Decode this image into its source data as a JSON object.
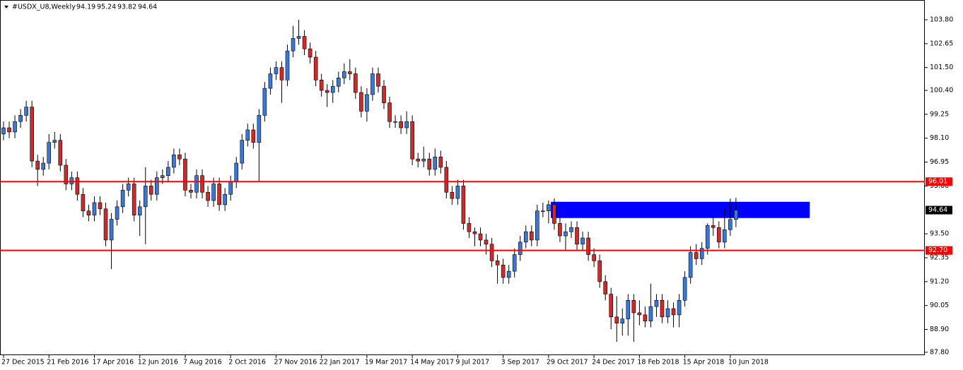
{
  "chart_data": {
    "type": "candlestick",
    "title": "#USDX_U8,Weekly",
    "categories": [
      "27 Dec 2015",
      null,
      null,
      null,
      null,
      null,
      null,
      null,
      "21 Feb 2016",
      null,
      null,
      null,
      null,
      null,
      null,
      null,
      "17 Apr 2016",
      null,
      null,
      null,
      null,
      null,
      null,
      null,
      "12 Jun 2016",
      null,
      null,
      null,
      null,
      null,
      null,
      null,
      "7 Aug 2016",
      null,
      null,
      null,
      null,
      null,
      null,
      null,
      "2 Oct 2016",
      null,
      null,
      null,
      null,
      null,
      null,
      null,
      "27 Nov 2016",
      null,
      null,
      null,
      null,
      null,
      null,
      null,
      "22 Jan 2017",
      null,
      null,
      null,
      null,
      null,
      null,
      null,
      "19 Mar 2017",
      null,
      null,
      null,
      null,
      null,
      null,
      null,
      "14 May 2017",
      null,
      null,
      null,
      null,
      null,
      null,
      null,
      "9 Jul 2017",
      null,
      null,
      null,
      null,
      null,
      null,
      null,
      "3 Sep 2017",
      null,
      null,
      null,
      null,
      null,
      null,
      null,
      "29 Oct 2017",
      null,
      null,
      null,
      null,
      null,
      null,
      null,
      "24 Dec 2017",
      null,
      null,
      null,
      null,
      null,
      null,
      null,
      "18 Feb 2018",
      null,
      null,
      null,
      null,
      null,
      null,
      null,
      "15 Apr 2018",
      null,
      null,
      null,
      null,
      null,
      null,
      null,
      "10 Jun 2018",
      null
    ],
    "series": {
      "open": [
        98.3,
        98.6,
        98.4,
        98.9,
        99.2,
        99.6,
        97.0,
        96.6,
        96.9,
        97.9,
        98.0,
        96.8,
        95.9,
        96.2,
        95.4,
        94.6,
        94.4,
        95.0,
        94.7,
        93.2,
        94.2,
        94.8,
        95.6,
        95.9,
        94.4,
        94.8,
        95.8,
        95.4,
        96.2,
        96.3,
        96.7,
        97.3,
        97.1,
        95.6,
        95.5,
        96.3,
        95.5,
        95.1,
        95.9,
        94.9,
        95.4,
        96.0,
        96.9,
        98.0,
        98.5,
        97.9,
        99.2,
        100.5,
        101.2,
        101.5,
        100.9,
        102.3,
        102.9,
        103.0,
        102.4,
        102.0,
        100.9,
        100.4,
        100.3,
        100.6,
        101.0,
        101.3,
        101.2,
        100.3,
        99.4,
        100.2,
        101.2,
        100.6,
        99.8,
        98.9,
        98.9,
        98.6,
        98.9,
        97.1,
        97.0,
        97.1,
        96.6,
        97.2,
        96.7,
        95.5,
        95.2,
        95.8,
        94.0,
        93.6,
        93.5,
        93.2,
        93.0,
        92.2,
        92.0,
        91.4,
        91.7,
        92.5,
        93.1,
        93.6,
        93.2,
        94.6,
        94.6,
        94.9,
        94.0,
        93.4,
        93.6,
        93.8,
        93.0,
        93.3,
        92.5,
        92.2,
        91.2,
        90.6,
        89.5,
        89.2,
        89.4,
        90.3,
        89.7,
        89.6,
        89.3,
        90.0,
        90.3,
        89.5,
        89.9,
        89.6,
        90.3,
        91.4,
        92.6,
        92.3,
        92.8,
        93.9,
        93.8,
        93.1,
        93.7,
        94.19
      ],
      "high": [
        98.9,
        98.9,
        99.2,
        99.5,
        99.9,
        99.9,
        97.3,
        97.2,
        98.3,
        98.4,
        98.3,
        97.1,
        96.5,
        96.5,
        95.7,
        94.9,
        95.3,
        95.3,
        95.0,
        94.5,
        95.1,
        95.9,
        96.2,
        96.2,
        95.1,
        96.7,
        96.1,
        96.5,
        96.6,
        97.0,
        97.6,
        97.6,
        97.4,
        95.9,
        96.6,
        96.6,
        95.8,
        96.2,
        96.2,
        95.7,
        96.3,
        97.2,
        98.3,
        98.8,
        98.8,
        99.5,
        100.8,
        101.5,
        101.8,
        101.8,
        102.6,
        103.5,
        103.8,
        103.3,
        102.7,
        102.3,
        101.2,
        100.7,
        100.9,
        101.3,
        101.7,
        101.9,
        101.5,
        100.6,
        100.5,
        101.5,
        101.5,
        100.9,
        100.1,
        99.2,
        99.2,
        99.4,
        99.2,
        97.4,
        97.7,
        97.4,
        97.6,
        97.5,
        97.0,
        95.8,
        96.1,
        96.1,
        94.3,
        93.8,
        93.8,
        93.5,
        93.3,
        92.5,
        92.3,
        92.0,
        92.8,
        93.4,
        93.9,
        93.9,
        94.9,
        95.0,
        95.1,
        95.2,
        94.3,
        94.0,
        94.1,
        94.1,
        93.6,
        93.6,
        92.8,
        92.5,
        91.5,
        90.9,
        90.5,
        89.9,
        90.6,
        90.6,
        90.3,
        90.0,
        91.1,
        90.6,
        90.6,
        90.3,
        90.2,
        90.6,
        91.7,
        92.9,
        93.0,
        93.1,
        94.0,
        94.3,
        94.1,
        94.7,
        95.2,
        95.24
      ],
      "low": [
        98.0,
        98.1,
        98.1,
        98.6,
        98.9,
        96.7,
        95.8,
        96.3,
        96.6,
        97.6,
        96.5,
        95.6,
        95.6,
        95.1,
        94.3,
        94.1,
        94.1,
        94.4,
        92.9,
        91.8,
        93.9,
        94.5,
        95.3,
        94.1,
        93.4,
        93.0,
        95.1,
        95.1,
        95.9,
        96.0,
        96.4,
        96.8,
        95.3,
        95.2,
        95.2,
        95.2,
        94.8,
        94.8,
        94.6,
        94.6,
        95.1,
        95.7,
        96.6,
        97.7,
        97.6,
        96.0,
        98.9,
        100.2,
        100.9,
        99.8,
        100.6,
        102.0,
        102.6,
        102.1,
        101.7,
        100.6,
        100.1,
        99.6,
        99.8,
        100.3,
        100.7,
        100.9,
        100.0,
        99.1,
        98.9,
        99.9,
        100.3,
        99.5,
        98.6,
        98.6,
        98.3,
        98.3,
        96.8,
        96.7,
        96.7,
        96.3,
        96.3,
        96.4,
        95.2,
        94.9,
        94.9,
        93.7,
        93.3,
        92.9,
        92.9,
        92.5,
        91.9,
        91.1,
        91.1,
        91.1,
        91.4,
        92.2,
        92.8,
        92.9,
        92.9,
        94.3,
        94.0,
        93.7,
        93.1,
        92.7,
        93.3,
        92.7,
        92.7,
        92.2,
        91.9,
        90.9,
        90.3,
        88.9,
        88.3,
        88.6,
        88.6,
        88.3,
        89.1,
        89.0,
        89.0,
        89.5,
        89.2,
        89.2,
        89.0,
        89.0,
        90.0,
        91.1,
        92.0,
        92.0,
        92.5,
        93.4,
        92.8,
        92.8,
        93.4,
        93.82
      ],
      "close": [
        98.6,
        98.4,
        98.9,
        99.2,
        99.6,
        97.0,
        96.6,
        96.9,
        97.9,
        98.0,
        96.8,
        95.9,
        96.2,
        95.4,
        94.6,
        94.4,
        95.0,
        94.7,
        93.2,
        94.2,
        94.8,
        95.6,
        95.9,
        94.4,
        94.8,
        95.8,
        95.4,
        96.2,
        96.3,
        96.7,
        97.3,
        97.1,
        95.6,
        95.5,
        96.3,
        95.5,
        95.1,
        95.9,
        94.9,
        95.4,
        96.0,
        96.9,
        98.0,
        98.5,
        97.9,
        99.2,
        100.5,
        101.2,
        101.5,
        100.9,
        102.3,
        102.9,
        103.0,
        102.4,
        102.0,
        100.9,
        100.4,
        100.3,
        100.6,
        101.0,
        101.3,
        101.2,
        100.3,
        99.4,
        100.2,
        101.2,
        100.6,
        99.8,
        98.9,
        98.9,
        98.6,
        98.9,
        97.1,
        97.0,
        97.1,
        96.6,
        97.2,
        96.7,
        95.5,
        95.2,
        95.8,
        94.0,
        93.6,
        93.5,
        93.2,
        93.0,
        92.2,
        92.0,
        91.4,
        91.7,
        92.5,
        93.1,
        93.6,
        93.2,
        94.6,
        94.6,
        94.9,
        94.0,
        93.4,
        93.6,
        93.8,
        93.0,
        93.3,
        92.5,
        92.2,
        91.2,
        90.6,
        89.5,
        89.2,
        89.4,
        90.3,
        89.7,
        89.6,
        89.3,
        90.0,
        90.3,
        89.5,
        89.9,
        89.6,
        90.3,
        91.4,
        92.6,
        92.3,
        92.8,
        93.9,
        93.8,
        93.1,
        93.7,
        94.19,
        94.64
      ]
    },
    "colors": {
      "up": "#3b78d6",
      "down": "#cf2a2a",
      "wick": "#000000"
    },
    "ylim": [
      87.66,
      104.75
    ],
    "yticks": [
      {
        "value": 103.8,
        "label": "103.80"
      },
      102.65,
      {
        "value": 101.5,
        "label": "101.50"
      },
      {
        "value": 100.4,
        "label": "100.40"
      },
      99.25,
      {
        "value": 98.1,
        "label": "98.10"
      },
      96.95,
      {
        "value": 95.8,
        "label": "95.80"
      },
      {
        "value": 93.5,
        "label": "93.50"
      },
      92.35,
      {
        "value": 91.2,
        "label": "91.20"
      },
      90.05,
      {
        "value": 88.9,
        "label": "88.90"
      },
      {
        "value": 87.8,
        "label": "87.80"
      }
    ],
    "hlines": [
      {
        "value": 96.01,
        "color": "#ff0000"
      },
      {
        "value": {
          "value": 92.7,
          "label": "92.70"
        },
        "color": "#ff0000"
      }
    ],
    "zone": {
      "ylim": [
        94.26,
        95.04
      ],
      "xlim": [
        96.4,
        142.0
      ],
      "color": "#0000ff"
    },
    "grid": false
  }
}
